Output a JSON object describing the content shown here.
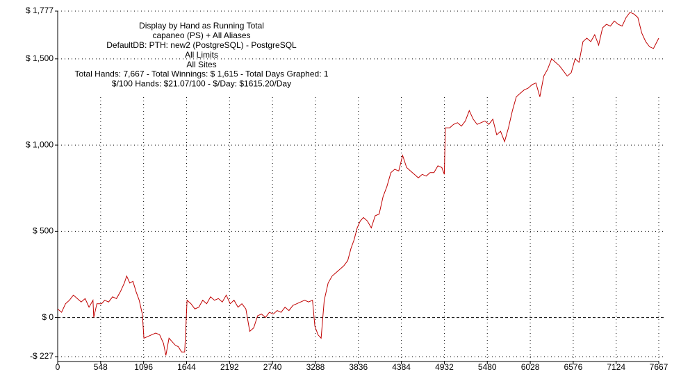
{
  "chart_data": {
    "type": "line",
    "annotations": [
      "Display by Hand as Running Total",
      "capaneo (PS) + All Aliases",
      "DefaultDB: PTH: new2 (PostgreSQL) - PostgreSQL",
      "All Limits",
      "All Sites",
      "Total Hands: 7,667 - Total Winnings: $ 1,615 - Total Days Graphed: 1",
      "$/100 Hands: $21.07/100 - $/Day: $1615.20/Day"
    ],
    "x": [
      0,
      50,
      100,
      150,
      200,
      250,
      300,
      350,
      400,
      450,
      460,
      500,
      560,
      600,
      650,
      700,
      750,
      800,
      850,
      880,
      920,
      960,
      1000,
      1040,
      1080,
      1100,
      1150,
      1200,
      1250,
      1300,
      1350,
      1380,
      1420,
      1460,
      1500,
      1540,
      1580,
      1620,
      1650,
      1700,
      1750,
      1800,
      1850,
      1900,
      1950,
      2000,
      2050,
      2100,
      2150,
      2200,
      2250,
      2300,
      2350,
      2400,
      2450,
      2500,
      2550,
      2600,
      2650,
      2700,
      2750,
      2800,
      2850,
      2900,
      2950,
      3000,
      3050,
      3100,
      3150,
      3200,
      3250,
      3280,
      3320,
      3360,
      3400,
      3450,
      3500,
      3550,
      3600,
      3650,
      3700,
      3740,
      3780,
      3820,
      3860,
      3900,
      3950,
      4000,
      4050,
      4100,
      4150,
      4200,
      4250,
      4300,
      4350,
      4400,
      4450,
      4500,
      4550,
      4600,
      4650,
      4700,
      4750,
      4800,
      4850,
      4900,
      4932,
      4945,
      5000,
      5050,
      5100,
      5150,
      5200,
      5250,
      5300,
      5350,
      5400,
      5450,
      5500,
      5550,
      5600,
      5650,
      5700,
      5750,
      5800,
      5850,
      5900,
      5950,
      6000,
      6050,
      6100,
      6150,
      6200,
      6250,
      6300,
      6350,
      6400,
      6450,
      6500,
      6550,
      6600,
      6650,
      6700,
      6750,
      6800,
      6850,
      6900,
      6950,
      7000,
      7050,
      7100,
      7150,
      7200,
      7250,
      7300,
      7350,
      7400,
      7450,
      7500,
      7550,
      7600,
      7667
    ],
    "series": [
      {
        "color": "#c00000",
        "values": [
          50,
          30,
          80,
          100,
          130,
          110,
          90,
          110,
          60,
          100,
          0,
          80,
          80,
          100,
          90,
          120,
          110,
          150,
          200,
          240,
          200,
          210,
          150,
          100,
          20,
          -120,
          -110,
          -100,
          -90,
          -100,
          -150,
          -220,
          -120,
          -140,
          -160,
          -170,
          -200,
          -200,
          100,
          80,
          50,
          60,
          100,
          80,
          120,
          100,
          110,
          90,
          130,
          80,
          100,
          60,
          80,
          50,
          -80,
          -60,
          10,
          20,
          0,
          30,
          20,
          40,
          30,
          60,
          40,
          70,
          80,
          90,
          100,
          90,
          100,
          -50,
          -100,
          -120,
          100,
          200,
          240,
          260,
          280,
          300,
          330,
          400,
          450,
          520,
          560,
          580,
          560,
          520,
          590,
          600,
          700,
          760,
          840,
          860,
          850,
          940,
          870,
          850,
          830,
          810,
          830,
          820,
          840,
          840,
          880,
          870,
          830,
          1100,
          1100,
          1120,
          1130,
          1110,
          1140,
          1200,
          1150,
          1120,
          1130,
          1140,
          1120,
          1150,
          1060,
          1080,
          1020,
          1100,
          1200,
          1280,
          1300,
          1320,
          1330,
          1350,
          1360,
          1280,
          1400,
          1440,
          1500,
          1480,
          1460,
          1430,
          1400,
          1420,
          1500,
          1480,
          1600,
          1620,
          1600,
          1640,
          1580,
          1680,
          1700,
          1690,
          1720,
          1700,
          1690,
          1740,
          1770,
          1760,
          1740,
          1650,
          1600,
          1570,
          1560,
          1620
        ]
      }
    ],
    "xlim": [
      0,
      7667
    ],
    "xticks": [
      0,
      548,
      1096,
      1644,
      2192,
      2740,
      3288,
      3836,
      4384,
      4932,
      5480,
      6028,
      6576,
      7124,
      7667
    ],
    "ylim": [
      -227,
      1777
    ],
    "yticks": [
      {
        "value": -227,
        "label": "-$ 227"
      },
      {
        "value": 0,
        "label": "$ 0"
      },
      {
        "value": 500,
        "label": "$ 500"
      },
      {
        "value": 1000,
        "label": "$ 1,000"
      },
      {
        "value": 1500,
        "label": "$ 1,500"
      },
      {
        "value": 1777,
        "label": "$ 1,777"
      }
    ],
    "grid": true
  }
}
